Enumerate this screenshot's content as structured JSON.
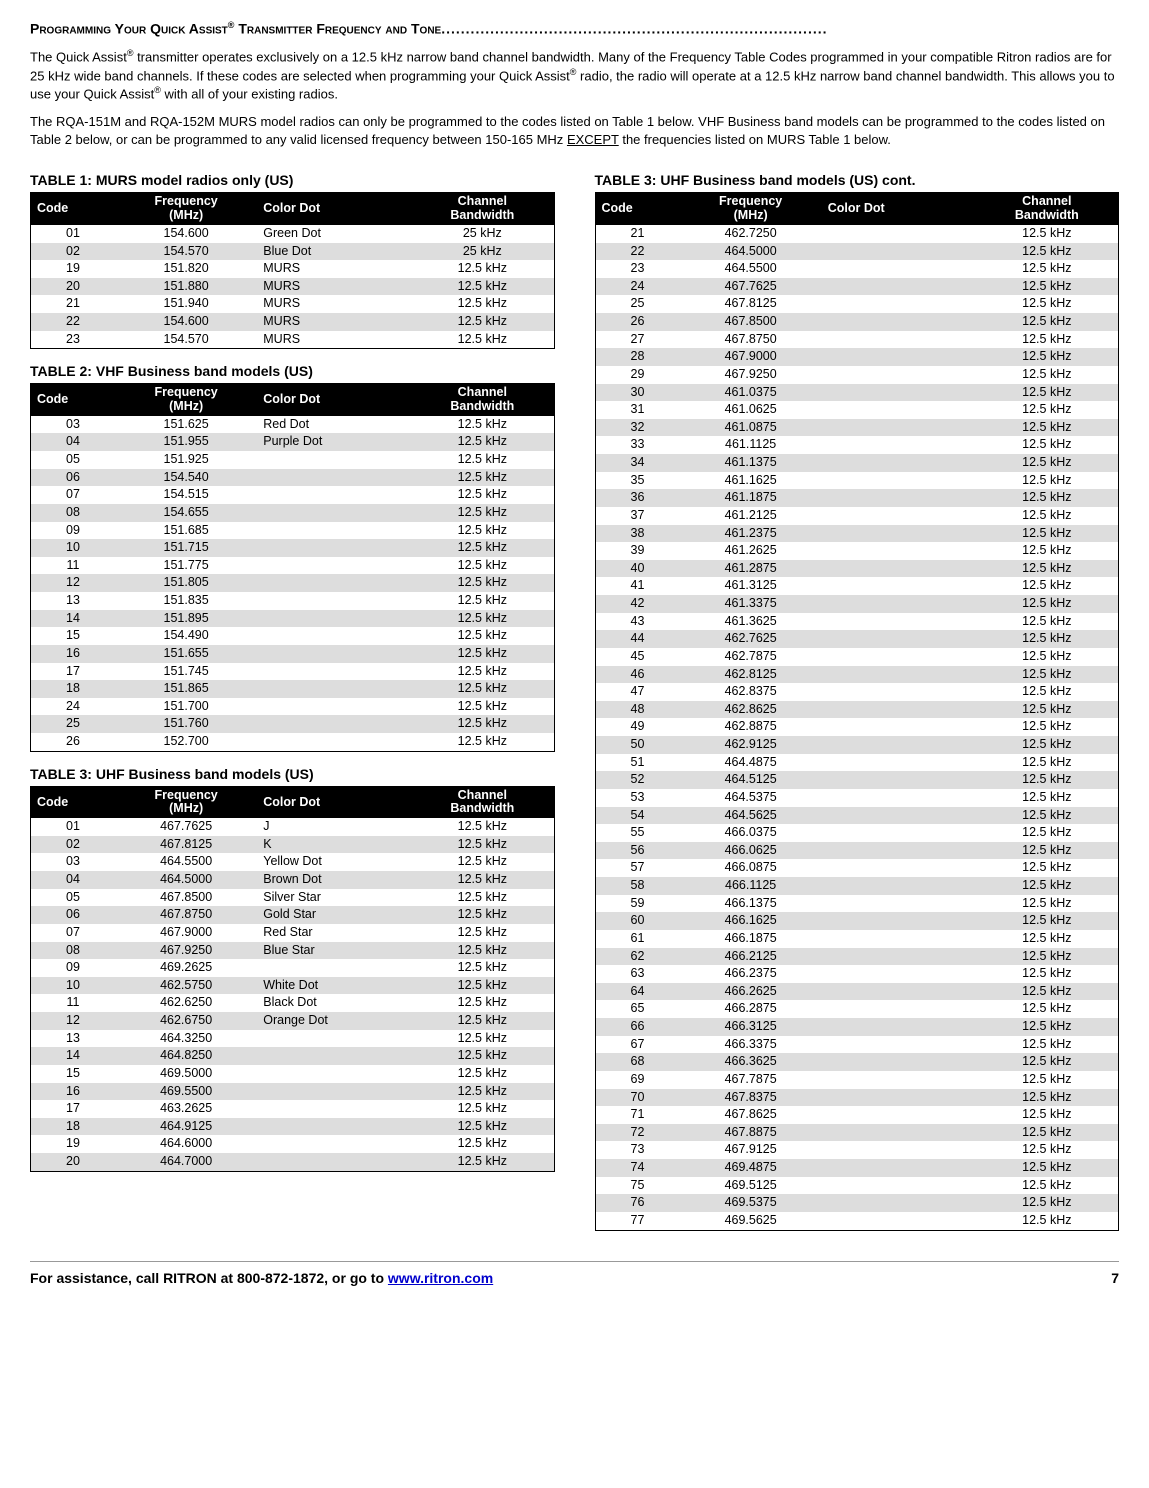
{
  "headline_before": "Programming Your Quick Assist",
  "headline_after": " Transmitter Frequency and Tone",
  "dots": "...............................................................................",
  "para1_a": "The Quick Assist",
  "para1_b": " transmitter operates exclusively on a 12.5 kHz narrow band channel bandwidth.  Many of the Frequency Table Codes programmed in your compatible Ritron radios are for 25 kHz wide band channels.  If these codes are selected when programming your Quick Assist",
  "para1_c": " radio, the radio will operate at a 12.5 kHz narrow band channel bandwidth.  This allows you to use your Quick Assist",
  "para1_d": " with all of your existing radios.",
  "para2_a": "The RQA-151M and RQA-152M MURS model radios can only be programmed to the codes listed on Table 1 below.  VHF Business band models can be programmed to the codes listed on Table 2 below, or can be programmed to any valid licensed frequency between 150-165 MHz ",
  "para2_u": "EXCEPT",
  "para2_b": " the frequencies listed on MURS Table 1 below.",
  "title_t1": "TABLE 1:  MURS model radios only (US)",
  "title_t2": "TABLE 2:  VHF Business band models (US)",
  "title_t3": "TABLE 3:  UHF Business band models (US)",
  "title_t3c": "TABLE 3:  UHF Business band models (US) cont.",
  "hdr_code": "Code",
  "hdr_freq": "Frequency\n(MHz)",
  "hdr_dot": "Color Dot",
  "hdr_bw": "Channel\nBandwidth",
  "t1": [
    [
      "01",
      "154.600",
      "Green Dot",
      "25 kHz"
    ],
    [
      "02",
      "154.570",
      "Blue Dot",
      "25 kHz"
    ],
    [
      "19",
      "151.820",
      "MURS",
      "12.5 kHz"
    ],
    [
      "20",
      "151.880",
      "MURS",
      "12.5 kHz"
    ],
    [
      "21",
      "151.940",
      "MURS",
      "12.5 kHz"
    ],
    [
      "22",
      "154.600",
      "MURS",
      "12.5 kHz"
    ],
    [
      "23",
      "154.570",
      "MURS",
      "12.5 kHz"
    ]
  ],
  "t2": [
    [
      "03",
      "151.625",
      "Red Dot",
      "12.5 kHz"
    ],
    [
      "04",
      "151.955",
      "Purple Dot",
      "12.5 kHz"
    ],
    [
      "05",
      "151.925",
      "",
      "12.5 kHz"
    ],
    [
      "06",
      "154.540",
      "",
      "12.5 kHz"
    ],
    [
      "07",
      "154.515",
      "",
      "12.5 kHz"
    ],
    [
      "08",
      "154.655",
      "",
      "12.5 kHz"
    ],
    [
      "09",
      "151.685",
      "",
      "12.5 kHz"
    ],
    [
      "10",
      "151.715",
      "",
      "12.5 kHz"
    ],
    [
      "11",
      "151.775",
      "",
      "12.5 kHz"
    ],
    [
      "12",
      "151.805",
      "",
      "12.5 kHz"
    ],
    [
      "13",
      "151.835",
      "",
      "12.5 kHz"
    ],
    [
      "14",
      "151.895",
      "",
      "12.5 kHz"
    ],
    [
      "15",
      "154.490",
      "",
      "12.5 kHz"
    ],
    [
      "16",
      "151.655",
      "",
      "12.5 kHz"
    ],
    [
      "17",
      "151.745",
      "",
      "12.5 kHz"
    ],
    [
      "18",
      "151.865",
      "",
      "12.5 kHz"
    ],
    [
      "24",
      "151.700",
      "",
      "12.5 kHz"
    ],
    [
      "25",
      "151.760",
      "",
      "12.5 kHz"
    ],
    [
      "26",
      "152.700",
      "",
      "12.5 kHz"
    ]
  ],
  "t3": [
    [
      "01",
      "467.7625",
      "J",
      "12.5 kHz"
    ],
    [
      "02",
      "467.8125",
      "K",
      "12.5 kHz"
    ],
    [
      "03",
      "464.5500",
      "Yellow Dot",
      "12.5 kHz"
    ],
    [
      "04",
      "464.5000",
      "Brown Dot",
      "12.5 kHz"
    ],
    [
      "05",
      "467.8500",
      "Silver Star",
      "12.5 kHz"
    ],
    [
      "06",
      "467.8750",
      "Gold Star",
      "12.5 kHz"
    ],
    [
      "07",
      "467.9000",
      "Red Star",
      "12.5 kHz"
    ],
    [
      "08",
      "467.9250",
      "Blue Star",
      "12.5 kHz"
    ],
    [
      "09",
      "469.2625",
      "",
      "12.5 kHz"
    ],
    [
      "10",
      "462.5750",
      "White Dot",
      "12.5 kHz"
    ],
    [
      "11",
      "462.6250",
      "Black Dot",
      "12.5 kHz"
    ],
    [
      "12",
      "462.6750",
      "Orange Dot",
      "12.5 kHz"
    ],
    [
      "13",
      "464.3250",
      "",
      "12.5 kHz"
    ],
    [
      "14",
      "464.8250",
      "",
      "12.5 kHz"
    ],
    [
      "15",
      "469.5000",
      "",
      "12.5 kHz"
    ],
    [
      "16",
      "469.5500",
      "",
      "12.5 kHz"
    ],
    [
      "17",
      "463.2625",
      "",
      "12.5 kHz"
    ],
    [
      "18",
      "464.9125",
      "",
      "12.5 kHz"
    ],
    [
      "19",
      "464.6000",
      "",
      "12.5 kHz"
    ],
    [
      "20",
      "464.7000",
      "",
      "12.5 kHz"
    ]
  ],
  "t3c": [
    [
      "21",
      "462.7250",
      "",
      "12.5 kHz"
    ],
    [
      "22",
      "464.5000",
      "",
      "12.5 kHz"
    ],
    [
      "23",
      "464.5500",
      "",
      "12.5 kHz"
    ],
    [
      "24",
      "467.7625",
      "",
      "12.5 kHz"
    ],
    [
      "25",
      "467.8125",
      "",
      "12.5 kHz"
    ],
    [
      "26",
      "467.8500",
      "",
      "12.5 kHz"
    ],
    [
      "27",
      "467.8750",
      "",
      "12.5 kHz"
    ],
    [
      "28",
      "467.9000",
      "",
      "12.5 kHz"
    ],
    [
      "29",
      "467.9250",
      "",
      "12.5 kHz"
    ],
    [
      "30",
      "461.0375",
      "",
      "12.5 kHz"
    ],
    [
      "31",
      "461.0625",
      "",
      "12.5 kHz"
    ],
    [
      "32",
      "461.0875",
      "",
      "12.5 kHz"
    ],
    [
      "33",
      "461.1125",
      "",
      "12.5 kHz"
    ],
    [
      "34",
      "461.1375",
      "",
      "12.5 kHz"
    ],
    [
      "35",
      "461.1625",
      "",
      "12.5 kHz"
    ],
    [
      "36",
      "461.1875",
      "",
      "12.5 kHz"
    ],
    [
      "37",
      "461.2125",
      "",
      "12.5 kHz"
    ],
    [
      "38",
      "461.2375",
      "",
      "12.5 kHz"
    ],
    [
      "39",
      "461.2625",
      "",
      "12.5 kHz"
    ],
    [
      "40",
      "461.2875",
      "",
      "12.5 kHz"
    ],
    [
      "41",
      "461.3125",
      "",
      "12.5 kHz"
    ],
    [
      "42",
      "461.3375",
      "",
      "12.5 kHz"
    ],
    [
      "43",
      "461.3625",
      "",
      "12.5 kHz"
    ],
    [
      "44",
      "462.7625",
      "",
      "12.5 kHz"
    ],
    [
      "45",
      "462.7875",
      "",
      "12.5 kHz"
    ],
    [
      "46",
      "462.8125",
      "",
      "12.5 kHz"
    ],
    [
      "47",
      "462.8375",
      "",
      "12.5 kHz"
    ],
    [
      "48",
      "462.8625",
      "",
      "12.5 kHz"
    ],
    [
      "49",
      "462.8875",
      "",
      "12.5 kHz"
    ],
    [
      "50",
      "462.9125",
      "",
      "12.5 kHz"
    ],
    [
      "51",
      "464.4875",
      "",
      "12.5 kHz"
    ],
    [
      "52",
      "464.5125",
      "",
      "12.5 kHz"
    ],
    [
      "53",
      "464.5375",
      "",
      "12.5 kHz"
    ],
    [
      "54",
      "464.5625",
      "",
      "12.5 kHz"
    ],
    [
      "55",
      "466.0375",
      "",
      "12.5 kHz"
    ],
    [
      "56",
      "466.0625",
      "",
      "12.5 kHz"
    ],
    [
      "57",
      "466.0875",
      "",
      "12.5 kHz"
    ],
    [
      "58",
      "466.1125",
      "",
      "12.5 kHz"
    ],
    [
      "59",
      "466.1375",
      "",
      "12.5 kHz"
    ],
    [
      "60",
      "466.1625",
      "",
      "12.5 kHz"
    ],
    [
      "61",
      "466.1875",
      "",
      "12.5 kHz"
    ],
    [
      "62",
      "466.2125",
      "",
      "12.5 kHz"
    ],
    [
      "63",
      "466.2375",
      "",
      "12.5 kHz"
    ],
    [
      "64",
      "466.2625",
      "",
      "12.5 kHz"
    ],
    [
      "65",
      "466.2875",
      "",
      "12.5 kHz"
    ],
    [
      "66",
      "466.3125",
      "",
      "12.5 kHz"
    ],
    [
      "67",
      "466.3375",
      "",
      "12.5 kHz"
    ],
    [
      "68",
      "466.3625",
      "",
      "12.5 kHz"
    ],
    [
      "69",
      "467.7875",
      "",
      "12.5 kHz"
    ],
    [
      "70",
      "467.8375",
      "",
      "12.5 kHz"
    ],
    [
      "71",
      "467.8625",
      "",
      "12.5 kHz"
    ],
    [
      "72",
      "467.8875",
      "",
      "12.5 kHz"
    ],
    [
      "73",
      "467.9125",
      "",
      "12.5 kHz"
    ],
    [
      "74",
      "469.4875",
      "",
      "12.5 kHz"
    ],
    [
      "75",
      "469.5125",
      "",
      "12.5 kHz"
    ],
    [
      "76",
      "469.5375",
      "",
      "12.5 kHz"
    ],
    [
      "77",
      "469.5625",
      "",
      "12.5 kHz"
    ]
  ],
  "footer_text_a": "For assistance, call RITRON at 800-872-1872, or go to ",
  "footer_link_text": "www.ritron.com",
  "footer_page": "7"
}
